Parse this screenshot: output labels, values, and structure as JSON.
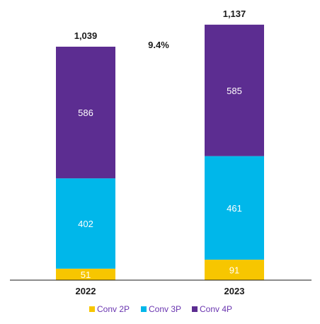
{
  "chart_data": {
    "type": "bar",
    "stacked": true,
    "categories": [
      "2022",
      "2023"
    ],
    "series": [
      {
        "name": "Conv 2P",
        "values": [
          51,
          91
        ],
        "color": "#F7C600"
      },
      {
        "name": "Conv 3P",
        "values": [
          402,
          461
        ],
        "color": "#00B7EA"
      },
      {
        "name": "Conv 4P",
        "values": [
          586,
          585
        ],
        "color": "#5C2D91"
      }
    ],
    "totals": [
      "1,039",
      "1,137"
    ],
    "annotation": "9.4%",
    "legend_position": "bottom",
    "legend_text_color": "#6A35B0",
    "grid": false
  }
}
